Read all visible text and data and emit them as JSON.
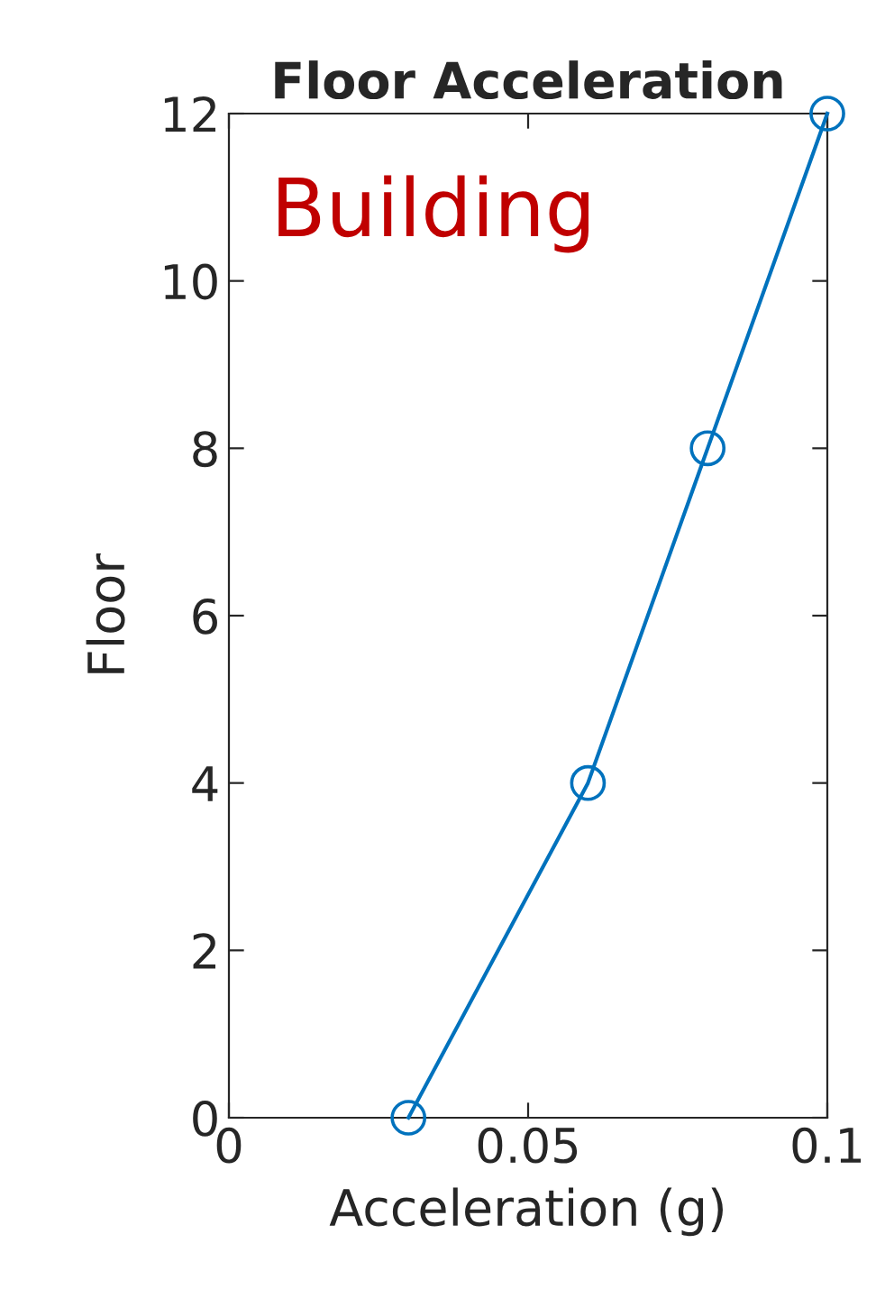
{
  "chart_data": {
    "type": "line",
    "title": "Floor Acceleration",
    "xlabel": "Acceleration (g)",
    "ylabel": "Floor",
    "annotations": [
      "Building"
    ],
    "series": [
      {
        "color": "#0072bd",
        "x": [
          0.03,
          0.06,
          0.08,
          0.1
        ],
        "values": [
          0,
          4,
          8,
          12
        ]
      }
    ],
    "xlim": [
      0,
      0.1
    ],
    "ylim": [
      0,
      12
    ],
    "xticks": [
      0,
      0.05,
      0.1
    ],
    "yticks": [
      0,
      2,
      4,
      6,
      8,
      10,
      12
    ],
    "marker": "circle",
    "line_style": "solid",
    "grid": false,
    "legend": false
  }
}
